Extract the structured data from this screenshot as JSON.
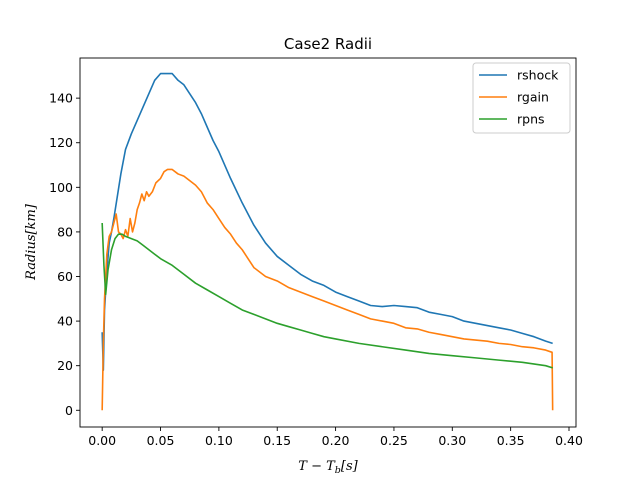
{
  "chart_data": {
    "type": "line",
    "title": "Case2 Radii",
    "xlabel": "T − T_b[s]",
    "ylabel": "Radius[km]",
    "xlabel_parts": {
      "main": "T − T",
      "sub": "b",
      "tail": "[s]"
    },
    "xlim": [
      -0.019,
      0.406
    ],
    "ylim": [
      -7.5,
      158
    ],
    "xticks": [
      0.0,
      0.05,
      0.1,
      0.15,
      0.2,
      0.25,
      0.3,
      0.35,
      0.4
    ],
    "xtick_labels": [
      "0.00",
      "0.05",
      "0.10",
      "0.15",
      "0.20",
      "0.25",
      "0.30",
      "0.35",
      "0.40"
    ],
    "yticks": [
      0,
      20,
      40,
      60,
      80,
      100,
      120,
      140
    ],
    "ytick_labels": [
      "0",
      "20",
      "40",
      "60",
      "80",
      "100",
      "120",
      "140"
    ],
    "grid": false,
    "legend_position": "top-right",
    "series": [
      {
        "name": "rshock",
        "color": "#1f77b4",
        "x": [
          0.0,
          0.001,
          0.002,
          0.004,
          0.006,
          0.008,
          0.01,
          0.013,
          0.016,
          0.02,
          0.025,
          0.03,
          0.035,
          0.04,
          0.045,
          0.05,
          0.055,
          0.06,
          0.065,
          0.07,
          0.075,
          0.08,
          0.085,
          0.09,
          0.095,
          0.1,
          0.11,
          0.12,
          0.13,
          0.14,
          0.15,
          0.16,
          0.17,
          0.18,
          0.19,
          0.2,
          0.21,
          0.22,
          0.23,
          0.24,
          0.25,
          0.26,
          0.27,
          0.28,
          0.29,
          0.3,
          0.31,
          0.32,
          0.33,
          0.34,
          0.35,
          0.36,
          0.37,
          0.38,
          0.386
        ],
        "y": [
          35,
          18,
          45,
          62,
          75,
          80,
          86,
          96,
          106,
          117,
          124,
          130,
          136,
          142,
          148,
          151,
          151,
          151,
          148,
          146,
          142,
          138,
          133,
          127,
          121,
          116,
          104,
          93,
          83,
          75,
          69,
          65,
          61,
          58,
          56,
          53,
          51,
          49,
          47,
          46.5,
          47,
          46.5,
          46,
          44,
          43,
          42,
          40,
          39,
          38,
          37,
          36,
          34.5,
          33,
          31,
          30
        ]
      },
      {
        "name": "rgain",
        "color": "#ff7f0e",
        "x": [
          0.0,
          0.001,
          0.002,
          0.004,
          0.006,
          0.008,
          0.01,
          0.012,
          0.014,
          0.016,
          0.018,
          0.02,
          0.022,
          0.024,
          0.026,
          0.028,
          0.03,
          0.032,
          0.034,
          0.036,
          0.038,
          0.04,
          0.043,
          0.046,
          0.05,
          0.053,
          0.056,
          0.06,
          0.065,
          0.07,
          0.075,
          0.08,
          0.085,
          0.09,
          0.095,
          0.1,
          0.105,
          0.11,
          0.115,
          0.12,
          0.125,
          0.13,
          0.14,
          0.15,
          0.16,
          0.17,
          0.18,
          0.19,
          0.2,
          0.21,
          0.22,
          0.23,
          0.24,
          0.25,
          0.26,
          0.27,
          0.28,
          0.29,
          0.3,
          0.31,
          0.32,
          0.33,
          0.34,
          0.35,
          0.36,
          0.37,
          0.38,
          0.3855,
          0.386
        ],
        "y": [
          0,
          30,
          50,
          70,
          78,
          80,
          84,
          88,
          80,
          79,
          77,
          81,
          78,
          86,
          80,
          84,
          90,
          93,
          97,
          94,
          98,
          96,
          98,
          102,
          104,
          107,
          108,
          108,
          106,
          105,
          103,
          101,
          98,
          93,
          90,
          86,
          82,
          79,
          75,
          72,
          68,
          64,
          60,
          58,
          55,
          53,
          51,
          49,
          47,
          45,
          43,
          41,
          40,
          39,
          37,
          36.5,
          35,
          34,
          33,
          32,
          31.5,
          31,
          30,
          29.5,
          28.5,
          28,
          27,
          26,
          0
        ]
      },
      {
        "name": "rpns",
        "color": "#2ca02c",
        "x": [
          0.0,
          0.0015,
          0.003,
          0.005,
          0.008,
          0.011,
          0.014,
          0.017,
          0.02,
          0.025,
          0.03,
          0.035,
          0.04,
          0.045,
          0.05,
          0.06,
          0.07,
          0.08,
          0.09,
          0.1,
          0.11,
          0.12,
          0.13,
          0.14,
          0.15,
          0.16,
          0.17,
          0.18,
          0.19,
          0.2,
          0.22,
          0.24,
          0.26,
          0.28,
          0.3,
          0.32,
          0.34,
          0.36,
          0.38,
          0.386
        ],
        "y": [
          84,
          65,
          52,
          63,
          72,
          77,
          79,
          79,
          78,
          77,
          76,
          74,
          72,
          70,
          68,
          65,
          61,
          57,
          54,
          51,
          48,
          45,
          43,
          41,
          39,
          37.5,
          36,
          34.5,
          33,
          32,
          30,
          28.5,
          27,
          25.5,
          24.5,
          23.5,
          22.5,
          21.5,
          20,
          19
        ]
      }
    ]
  }
}
